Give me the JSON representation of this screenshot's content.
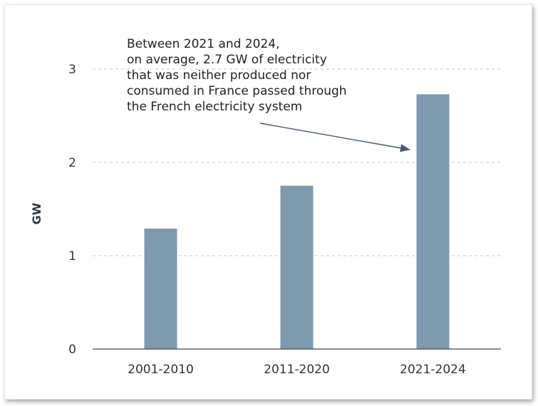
{
  "chart_data": {
    "type": "bar",
    "categories": [
      "2001-2010",
      "2011-2020",
      "2021-2024"
    ],
    "values": [
      1.29,
      1.75,
      2.73
    ],
    "ylabel": "GW",
    "xlabel": "",
    "ylim": [
      0,
      3
    ],
    "yticks": [
      "0",
      "1",
      "2",
      "3"
    ],
    "grid": true,
    "bar_color": "#7e9aac",
    "annotation": {
      "lines": [
        "Between 2021 and 2024,",
        "on average, 2.7 GW of electricity",
        "that was neither produced nor",
        "consumed in France passed through",
        "the French electricity system"
      ],
      "target_category": "2021-2024"
    }
  }
}
